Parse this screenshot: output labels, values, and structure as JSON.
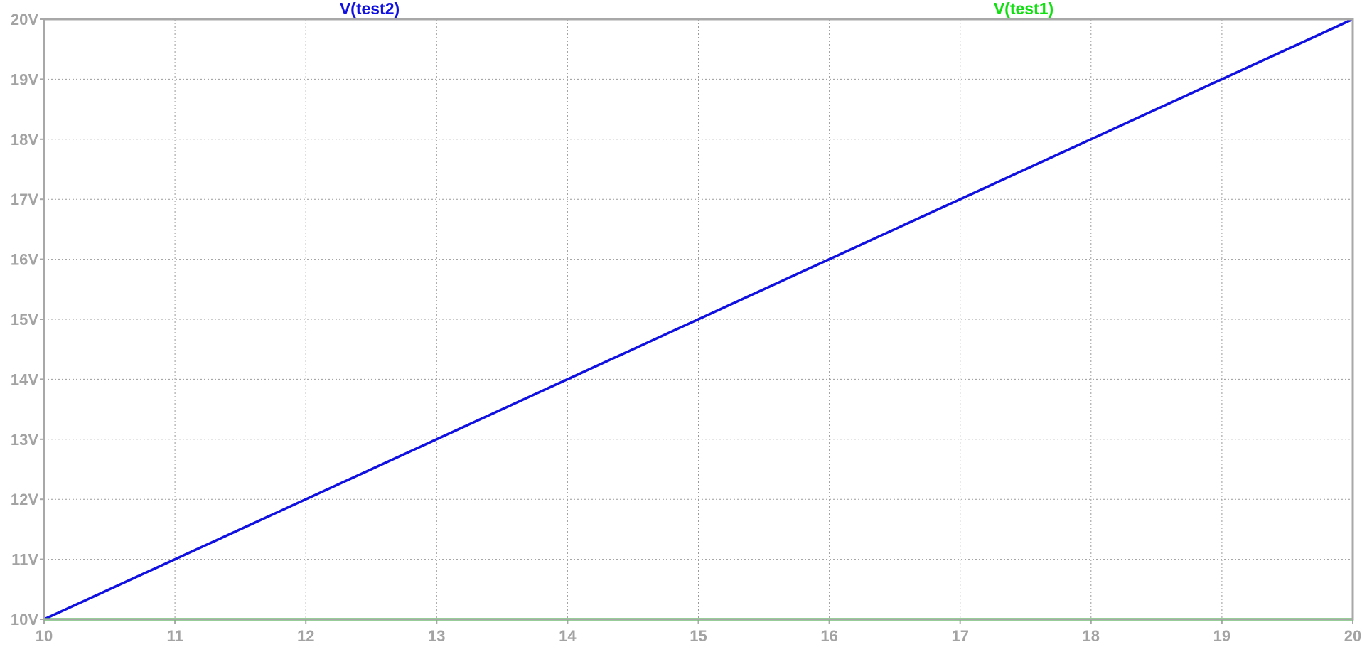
{
  "chart_data": {
    "type": "line",
    "title": "",
    "xlabel": "",
    "ylabel": "",
    "xlim": [
      10,
      20
    ],
    "ylim": [
      10,
      20
    ],
    "grid": true,
    "x_ticks": [
      "10",
      "11",
      "12",
      "13",
      "14",
      "15",
      "16",
      "17",
      "18",
      "19",
      "20"
    ],
    "y_ticks": [
      "10V",
      "11V",
      "12V",
      "13V",
      "14V",
      "15V",
      "16V",
      "17V",
      "18V",
      "19V",
      "20V"
    ],
    "legend_placement": "top",
    "series": [
      {
        "name": "V(test2)",
        "color": "#1010e0",
        "x": [
          10,
          20
        ],
        "y": [
          10,
          20
        ]
      },
      {
        "name": "V(test1)",
        "color": "#10e010",
        "x": [
          10,
          20
        ],
        "y": [
          10,
          10
        ]
      }
    ]
  }
}
